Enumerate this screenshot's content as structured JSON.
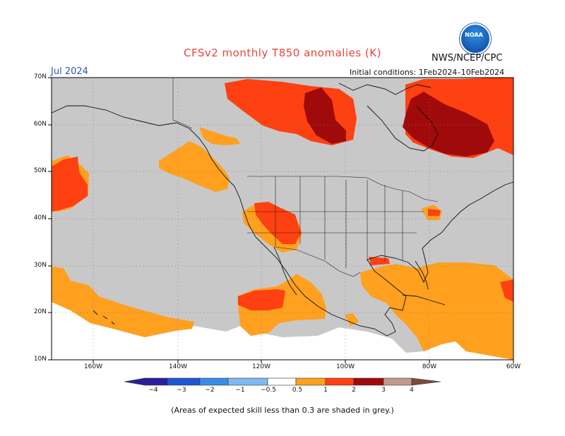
{
  "title": "CFSv2 monthly T850 anomalies (K)",
  "month": "Jul 2024",
  "org": "NWS/NCEP/CPC",
  "initial_conditions": "Initial conditions: 1Feb2024–10Feb2024",
  "logo_text": "NOAA",
  "caption": "(Areas of expected skill less than 0.3 are shaded in grey.)",
  "map": {
    "lon_range": [
      -170,
      -60
    ],
    "lat_range": [
      10,
      70
    ],
    "y_ticks": [
      "70N",
      "60N",
      "50N",
      "40N",
      "30N",
      "20N",
      "10N"
    ],
    "x_ticks": [
      "160W",
      "140W",
      "120W",
      "100W",
      "80W",
      "60W"
    ],
    "colors": {
      "grey_low_skill": "#c8c8c8",
      "no_signal": "#ffffff",
      "anom_0.5_1": "#ffa01e",
      "anom_1_2": "#ff4010",
      "anom_2_3": "#a00a0a",
      "land_outline": "#000000"
    }
  },
  "colorbar": {
    "labels": [
      "−4",
      "−3",
      "−2",
      "−1",
      "−0.5",
      "0.5",
      "1",
      "2",
      "3",
      "4"
    ],
    "colors": [
      "#2a1f9e",
      "#1f55d6",
      "#3a8de6",
      "#7fb9f2",
      "#ffffff",
      "#ffa01e",
      "#ff4010",
      "#a00a0a",
      "#c09a8c",
      "#7a4a3a"
    ]
  }
}
